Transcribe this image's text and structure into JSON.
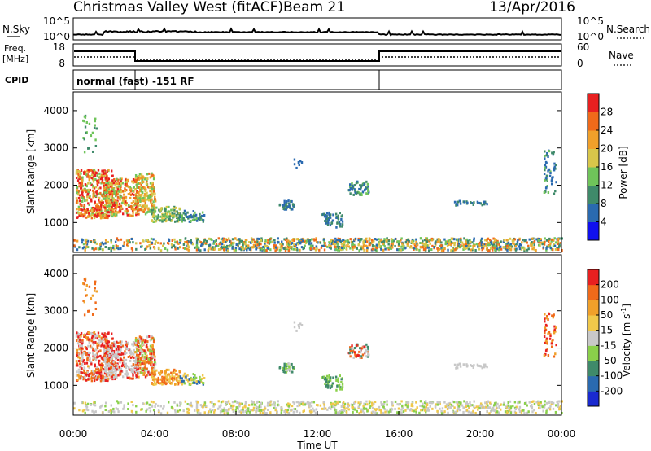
{
  "header": {
    "station": "Christmas Valley West (fitACF)",
    "beam": "Beam 21",
    "date": "13/Apr/2016"
  },
  "top_panels": {
    "nsky_label": "N.Sky",
    "nsky_ticks": [
      "10^5",
      "10^0"
    ],
    "nsearch_label": "N.Search",
    "nsearch_ticks": [
      "10^5",
      "10^0"
    ],
    "freq_label": "Freq.",
    "freq_unit": "[MHz]",
    "freq_ticks": [
      "18",
      "8"
    ],
    "nave_label": "Nave",
    "nave_ticks": [
      "60",
      "0"
    ],
    "cpid_label": "CPID",
    "cpid_text": "normal (fast) -151 RF"
  },
  "chart_data": [
    {
      "type": "heatmap",
      "name": "power",
      "ylabel": "Slant Range [km]",
      "ylim": [
        200,
        4500
      ],
      "yticks": [
        "1000",
        "2000",
        "3000",
        "4000"
      ],
      "colorbar_label": "Power [dB]",
      "colorbar_ticks": [
        "4",
        "8",
        "12",
        "16",
        "20",
        "24",
        "28"
      ],
      "colorbar_colors": [
        "#1010ee",
        "#2a6ab0",
        "#3f8a6a",
        "#6fc45a",
        "#d8c64a",
        "#f0a02a",
        "#f06a1a",
        "#e82020"
      ]
    },
    {
      "type": "heatmap",
      "name": "velocity",
      "ylabel": "Slant Range [km]",
      "ylim": [
        200,
        4500
      ],
      "yticks": [
        "1000",
        "2000",
        "3000",
        "4000"
      ],
      "colorbar_label": "Velocity [m s",
      "colorbar_sup": "-1",
      "colorbar_ticks": [
        "200",
        "100",
        "50",
        "15",
        "-15",
        "-50",
        "-100",
        "-200"
      ],
      "colorbar_colors": [
        "#1a2ad0",
        "#2a6ab0",
        "#3f8a6a",
        "#8ad04a",
        "#c8c8c8",
        "#f0c84a",
        "#f0a02a",
        "#f06a1a",
        "#e82020"
      ]
    }
  ],
  "time_axis": {
    "ticks": [
      "00:00",
      "04:00",
      "08:00",
      "12:00",
      "16:00",
      "20:00",
      "00:00"
    ],
    "label": "Time UT"
  }
}
